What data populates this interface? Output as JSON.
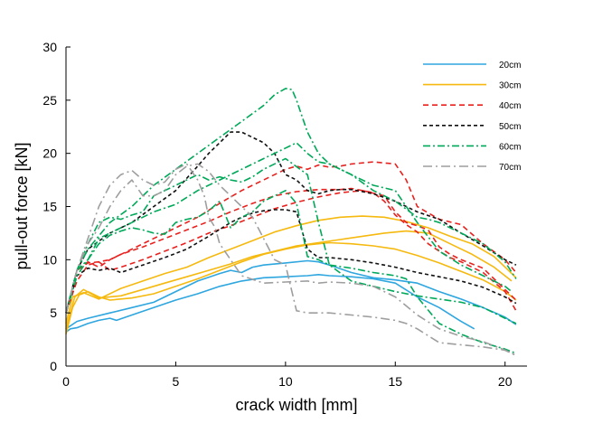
{
  "chart_data": {
    "type": "line",
    "title": "",
    "xlabel": "crack width [mm]",
    "ylabel": "pull-out force [kN]",
    "xlim": [
      0,
      21
    ],
    "ylim": [
      0,
      30
    ],
    "xticks": [
      0,
      5,
      10,
      15,
      20
    ],
    "yticks": [
      0,
      5,
      10,
      15,
      20,
      25,
      30
    ],
    "grid": false,
    "legend_position": "top-right",
    "series": [
      {
        "name": "20cm",
        "color": "#2EA6DF",
        "dash": "solid",
        "curves": [
          {
            "x": [
              0,
              0.2,
              0.5,
              1,
              1.5,
              2,
              2.3,
              3,
              4,
              5,
              6,
              7,
              8,
              9,
              10,
              11,
              11.5,
              12,
              13,
              14,
              15,
              16,
              17,
              18,
              18.6
            ],
            "y": [
              3.2,
              3.5,
              3.6,
              4,
              4.3,
              4.5,
              4.3,
              4.8,
              5.5,
              6.2,
              6.8,
              7.5,
              8,
              8.3,
              8.4,
              8.5,
              8.6,
              8.5,
              8.4,
              8.2,
              7.8,
              6.5,
              5.5,
              4.2,
              3.5
            ]
          },
          {
            "x": [
              0,
              0.5,
              1,
              2,
              3,
              4,
              5,
              6,
              7,
              7.5,
              8,
              8.5,
              9,
              10,
              11,
              11.5,
              12,
              13,
              14,
              15,
              16,
              17,
              18,
              19,
              20,
              20.5
            ],
            "y": [
              3.5,
              4.2,
              4.5,
              5,
              5.5,
              6,
              7,
              8,
              8.7,
              9,
              8.8,
              9.3,
              9.5,
              9.7,
              9.9,
              9.8,
              9.5,
              8.8,
              8.3,
              8.1,
              7.8,
              7,
              6.3,
              5.5,
              4.6,
              3.9
            ]
          }
        ]
      },
      {
        "name": "30cm",
        "color": "#F5B90F",
        "dash": "solid",
        "curves": [
          {
            "x": [
              0,
              0.3,
              0.6,
              1,
              1.5,
              2,
              3,
              4,
              5,
              6,
              7,
              8,
              9,
              10,
              11,
              12,
              13,
              14,
              15,
              16,
              17,
              18,
              19,
              20,
              20.5
            ],
            "y": [
              3,
              5.5,
              6.7,
              7,
              6.5,
              6.2,
              6.4,
              6.8,
              7.5,
              8.2,
              9,
              9.8,
              10.5,
              11,
              11.4,
              11.6,
              11.5,
              11.3,
              11,
              10.4,
              9.7,
              8.9,
              8.1,
              7,
              6.2
            ]
          },
          {
            "x": [
              0,
              0.4,
              0.8,
              1.5,
              2.5,
              3.5,
              4.5,
              5.5,
              6.5,
              7.5,
              8.5,
              9.5,
              10.5,
              11.5,
              12.5,
              13.5,
              14.5,
              15.5,
              16.5,
              17.5,
              18.5,
              19.5,
              20.3
            ],
            "y": [
              3.5,
              6.5,
              7.2,
              6.4,
              6.6,
              7.2,
              7.8,
              8.4,
              9,
              9.6,
              10.3,
              10.8,
              11.3,
              11.6,
              11.9,
              12.2,
              12.5,
              12.7,
              12.5,
              11.5,
              10.5,
              9.3,
              8
            ]
          },
          {
            "x": [
              0,
              0.3,
              0.8,
              1.5,
              2.5,
              3.5,
              4.5,
              5.5,
              6.5,
              7.5,
              8.5,
              9.5,
              10.5,
              11.5,
              12.5,
              13.5,
              14.5,
              15.5,
              16.5,
              17.5,
              18.5,
              19.5,
              20.5
            ],
            "y": [
              4,
              6.5,
              6.9,
              6.3,
              7.3,
              8,
              8.7,
              9.3,
              10.2,
              11,
              11.8,
              12.6,
              13.2,
              13.7,
              14,
              14.1,
              14,
              13.6,
              13,
              12.2,
              11.5,
              10.3,
              8.3
            ]
          }
        ]
      },
      {
        "name": "40cm",
        "color": "#E8211E",
        "dash": "6,4",
        "curves": [
          {
            "x": [
              0,
              0.5,
              1,
              1.5,
              2,
              2.5,
              3.5,
              4.5,
              5.5,
              6.5,
              7.5,
              8.5,
              9.5,
              10.5,
              11.5,
              12.5,
              13.5,
              14.5,
              15,
              15.5,
              16,
              16.5,
              17,
              17.5,
              18,
              19,
              20,
              20.5
            ],
            "y": [
              5,
              8,
              9.5,
              9.8,
              9,
              9.3,
              10,
              10.8,
              11.6,
              12.5,
              13.2,
              14,
              14.8,
              15.4,
              15.9,
              16.3,
              16.5,
              16,
              14.5,
              13.5,
              13.2,
              12.8,
              11.2,
              10.5,
              10,
              9.2,
              7.2,
              6.2
            ]
          },
          {
            "x": [
              0,
              0.5,
              1,
              1.5,
              2,
              2.5,
              3.5,
              4.5,
              5.5,
              6.5,
              7.5,
              8.5,
              9.5,
              10.5,
              11.5,
              12.5,
              13,
              13.5,
              14,
              14.5,
              15,
              15.5,
              16,
              16.5,
              17,
              17.5,
              18,
              19,
              20,
              20.5
            ],
            "y": [
              5,
              9,
              9.8,
              9.3,
              10,
              10.5,
              11.2,
              12,
              12.8,
              13.6,
              14.5,
              15.3,
              16,
              16.4,
              16.6,
              16.6,
              16.7,
              16.5,
              16.3,
              15.5,
              14.2,
              13.3,
              12.6,
              11.5,
              10.8,
              10.2,
              9.8,
              8.8,
              7,
              5.2
            ]
          },
          {
            "x": [
              0,
              0.5,
              1,
              1.5,
              2,
              3,
              4,
              5,
              6,
              7,
              8,
              9,
              10,
              10.5,
              11,
              11.5,
              12,
              12.5,
              13,
              14,
              15,
              15.5,
              16,
              17,
              18,
              19,
              20,
              20.5
            ],
            "y": [
              5,
              9,
              9.7,
              9.8,
              10,
              11,
              12,
              13,
              14,
              15.3,
              16.5,
              17.5,
              18.5,
              18.8,
              18.5,
              18.9,
              18.7,
              18.8,
              19,
              19.2,
              19,
              17.5,
              15,
              13.8,
              13.3,
              11.5,
              10,
              8.8
            ]
          }
        ]
      },
      {
        "name": "50cm",
        "color": "#111111",
        "dash": "4,3",
        "curves": [
          {
            "x": [
              0,
              0.5,
              1,
              1.5,
              2,
              2.5,
              3.5,
              4.5,
              5.5,
              6.5,
              7.5,
              8,
              8.3,
              8.5,
              9,
              9.5,
              10,
              10.5,
              11,
              11.5,
              12,
              13,
              14,
              15,
              16,
              17,
              18,
              19,
              20,
              20.5
            ],
            "y": [
              5,
              8.5,
              9.2,
              9,
              9.2,
              8.8,
              9.5,
              10.2,
              11,
              12.2,
              13.5,
              14,
              14.2,
              14.4,
              14.6,
              14.7,
              14.7,
              14.5,
              11,
              10.2,
              10.2,
              10,
              9.7,
              9.3,
              8.8,
              8.4,
              8,
              7.4,
              6.5,
              5.9
            ]
          },
          {
            "x": [
              0,
              0.5,
              1,
              2,
              3,
              4,
              5,
              6,
              6.5,
              7,
              7.5,
              8,
              8.5,
              9,
              9.5,
              10,
              10.5,
              11,
              11.5,
              12,
              12.5,
              13,
              13.5,
              14,
              15,
              16,
              17,
              18,
              19,
              20,
              20.5
            ],
            "y": [
              5,
              9,
              11,
              12.5,
              13.5,
              15,
              16.5,
              18.8,
              20,
              21,
              22,
              22,
              21.5,
              21,
              20,
              18,
              17.5,
              16.5,
              16.2,
              16.5,
              16.6,
              16.6,
              16.4,
              16.2,
              15.5,
              14.5,
              13.8,
              12.5,
              11.3,
              10,
              9.5
            ]
          }
        ]
      },
      {
        "name": "60cm",
        "color": "#00A859",
        "dash": "8,3,2,3",
        "curves": [
          {
            "x": [
              0,
              0.5,
              1,
              1.5,
              2,
              3,
              4,
              5,
              6,
              7,
              8,
              9,
              10,
              10.5,
              11,
              11.5,
              12,
              13,
              14,
              15,
              16,
              17,
              18,
              19,
              20,
              20.3
            ],
            "y": [
              5,
              9,
              10,
              12,
              12.5,
              13.5,
              14.5,
              15.2,
              16.5,
              17.5,
              18.5,
              19.5,
              20.5,
              21,
              20,
              19.2,
              19,
              18,
              17,
              16.5,
              13.5,
              10.8,
              9.5,
              8.5,
              7.5,
              7
            ]
          },
          {
            "x": [
              0,
              0.5,
              1,
              1.5,
              2,
              2.5,
              3,
              3.5,
              4,
              5,
              6,
              6.5,
              7,
              7.5,
              8,
              8.5,
              9,
              10,
              11,
              11.5,
              12,
              13,
              14,
              15,
              16,
              17,
              18,
              19,
              20,
              20.5
            ],
            "y": [
              5,
              9,
              11.5,
              13.5,
              14,
              13.8,
              14.2,
              14.5,
              16,
              17,
              18,
              17.5,
              17.8,
              17.5,
              17.3,
              17.8,
              18.5,
              19.5,
              18,
              13.5,
              9.5,
              8,
              7.5,
              7,
              6.6,
              6.3,
              6,
              5.5,
              4.5,
              4
            ]
          },
          {
            "x": [
              0,
              0.5,
              1,
              1.5,
              2,
              2.5,
              3,
              3.5,
              4,
              4.5,
              5,
              5.5,
              6,
              6.5,
              7,
              7.5,
              8,
              8.5,
              9,
              9.5,
              10,
              10.5,
              11,
              11.5,
              12,
              13,
              14,
              15,
              15.5,
              16,
              17,
              18,
              19,
              20,
              20.5
            ],
            "y": [
              5,
              8.5,
              10,
              11.5,
              12.3,
              12.7,
              13,
              12.8,
              12.5,
              12.4,
              13.5,
              13.8,
              14,
              14.6,
              15.5,
              13,
              14,
              14.5,
              15.5,
              16,
              16.5,
              15.3,
              10.3,
              10,
              9.5,
              9.2,
              8.8,
              8.5,
              8.2,
              6.5,
              4,
              3,
              2.2,
              1.6,
              1.2
            ]
          },
          {
            "x": [
              0,
              0.5,
              1,
              2,
              3,
              4,
              5,
              6,
              7,
              8,
              9,
              9.5,
              10,
              10.3,
              10.5,
              11,
              11.5,
              12,
              13,
              14,
              15,
              16,
              16.5,
              17,
              18,
              19,
              20,
              20.5
            ],
            "y": [
              5,
              9,
              11,
              13.5,
              15,
              17,
              18.5,
              20,
              21.5,
              23,
              24.5,
              25.5,
              26.1,
              26,
              25,
              22,
              20,
              19,
              18,
              16.5,
              15.5,
              14,
              13.8,
              13.5,
              12.5,
              11.5,
              9.8,
              8.2
            ]
          }
        ]
      },
      {
        "name": "70cm",
        "color": "#9E9E9E",
        "dash": "10,4,2,4",
        "curves": [
          {
            "x": [
              0,
              0.5,
              1,
              1.5,
              2,
              2.5,
              3,
              3.5,
              4,
              4.5,
              5,
              5.5,
              6,
              6.3,
              6.5,
              6.8,
              7,
              7.5,
              8,
              9,
              10,
              11,
              11.5,
              12,
              13,
              14,
              14.5,
              15,
              16,
              17,
              18,
              19,
              20,
              20.5
            ],
            "y": [
              5,
              9,
              12,
              15,
              17,
              18,
              18.4,
              17.5,
              17,
              17.3,
              18.5,
              19,
              17.5,
              16,
              14,
              13,
              11.5,
              10,
              8.5,
              7.8,
              7.9,
              8,
              7.8,
              7.9,
              7.8,
              7.5,
              7,
              6.5,
              4.8,
              3.5,
              2.8,
              2.3,
              1.5,
              1
            ]
          },
          {
            "x": [
              0,
              0.5,
              1,
              1.5,
              2,
              2.5,
              3,
              3.5,
              4,
              4.5,
              5,
              5.5,
              6,
              6.5,
              7,
              7.5,
              8,
              8.5,
              9,
              9.5,
              10,
              10.5,
              11,
              11.5,
              12,
              13,
              14,
              15,
              15.5,
              16,
              17,
              18,
              19,
              20,
              20.5
            ],
            "y": [
              5,
              9,
              11.5,
              13,
              15,
              16.5,
              17.5,
              16,
              16,
              16.5,
              18,
              18.8,
              19,
              18.3,
              17,
              16,
              15,
              14,
              12,
              10,
              9.5,
              5.2,
              5,
              5,
              5,
              4.8,
              4.6,
              4.3,
              4,
              3.5,
              2.2,
              2,
              1.8,
              1.5,
              1
            ]
          }
        ]
      }
    ]
  }
}
